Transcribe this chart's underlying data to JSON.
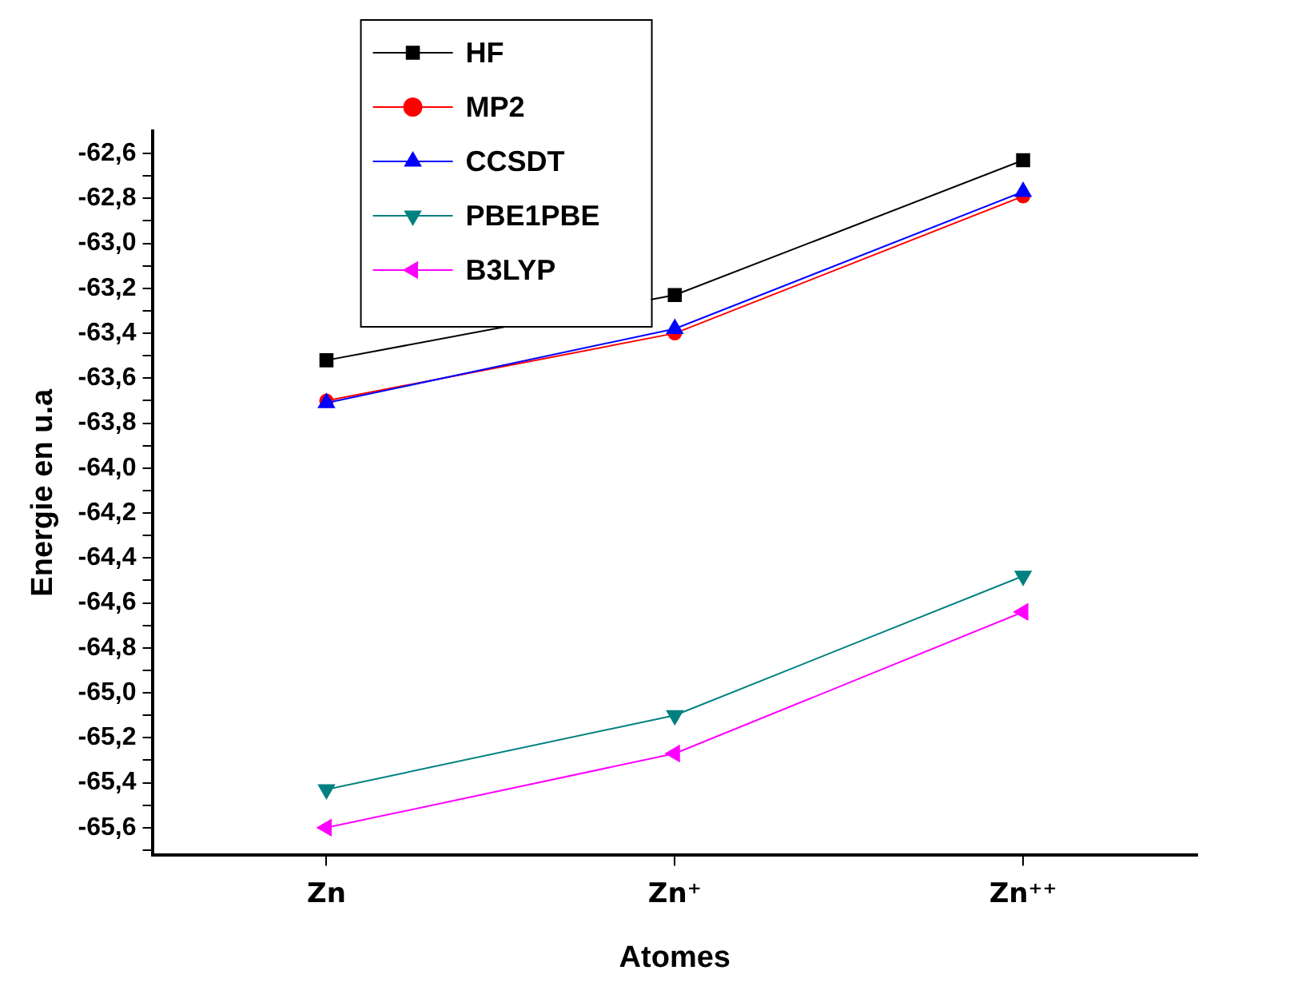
{
  "chart_data": {
    "type": "line",
    "xlabel": "Atomes",
    "ylabel": "Energie en u.a",
    "categories": [
      "Zn",
      "Zn⁺",
      "Zn⁺⁺"
    ],
    "series": [
      {
        "name": "HF",
        "color": "#000000",
        "marker": "square",
        "values": [
          -63.52,
          -63.23,
          -62.63
        ]
      },
      {
        "name": "MP2",
        "color": "#ff0000",
        "marker": "circle",
        "values": [
          -63.7,
          -63.4,
          -62.79
        ]
      },
      {
        "name": "CCSDT",
        "color": "#0000ff",
        "marker": "triangle",
        "values": [
          -63.71,
          -63.38,
          -62.77
        ]
      },
      {
        "name": "PBE1PBE",
        "color": "#008080",
        "marker": "triangle-down",
        "values": [
          -65.43,
          -65.1,
          -64.48
        ]
      },
      {
        "name": "B3LYP",
        "color": "#ff00ff",
        "marker": "triangle-left",
        "values": [
          -65.6,
          -65.27,
          -64.64
        ]
      }
    ],
    "ylim": [
      -65.72,
      -62.5
    ],
    "yticks": [
      {
        "value": -65.7,
        "label": null
      },
      {
        "value": -65.6,
        "label": "-65,6"
      },
      {
        "value": -65.5,
        "label": null
      },
      {
        "value": -65.4,
        "label": "-65,4"
      },
      {
        "value": -65.3,
        "label": null
      },
      {
        "value": -65.2,
        "label": "-65,2"
      },
      {
        "value": -65.1,
        "label": null
      },
      {
        "value": -65.0,
        "label": "-65,0"
      },
      {
        "value": -64.9,
        "label": null
      },
      {
        "value": -64.8,
        "label": "-64,8"
      },
      {
        "value": -64.7,
        "label": null
      },
      {
        "value": -64.6,
        "label": "-64,6"
      },
      {
        "value": -64.5,
        "label": null
      },
      {
        "value": -64.4,
        "label": "-64,4"
      },
      {
        "value": -64.3,
        "label": null
      },
      {
        "value": -64.2,
        "label": "-64,2"
      },
      {
        "value": -64.1,
        "label": null
      },
      {
        "value": -64.0,
        "label": "-64,0"
      },
      {
        "value": -63.9,
        "label": null
      },
      {
        "value": -63.8,
        "label": "-63,8"
      },
      {
        "value": -63.7,
        "label": null
      },
      {
        "value": -63.6,
        "label": "-63,6"
      },
      {
        "value": -63.5,
        "label": null
      },
      {
        "value": -63.4,
        "label": "-63,4"
      },
      {
        "value": -63.3,
        "label": null
      },
      {
        "value": -63.2,
        "label": "-63,2"
      },
      {
        "value": -63.1,
        "label": null
      },
      {
        "value": -63.0,
        "label": "-63,0"
      },
      {
        "value": -62.9,
        "label": null
      },
      {
        "value": -62.8,
        "label": "-62,8"
      },
      {
        "value": -62.7,
        "label": null
      },
      {
        "value": -62.6,
        "label": "-62,6"
      }
    ],
    "grid": false,
    "legend": "top left",
    "line_style": "solid"
  }
}
